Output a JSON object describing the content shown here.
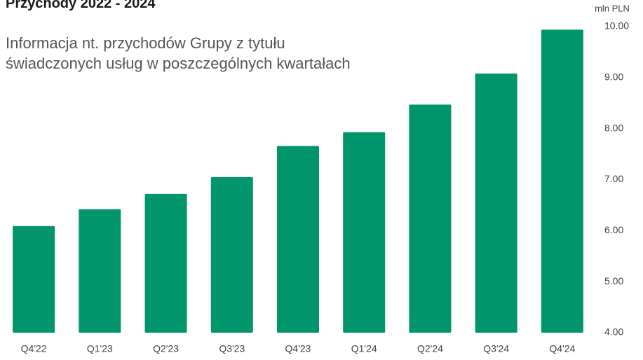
{
  "chart_data": {
    "type": "bar",
    "title": "Przychody 2022 - 2024",
    "subtitle": "Informacja nt. przychodów Grupy z tytułu świadczonych usług w poszczególnych kwartałach",
    "y_axis_label": "mln PLN",
    "categories": [
      "Q4'22",
      "Q1'23",
      "Q2'23",
      "Q3'23",
      "Q4'23",
      "Q1'24",
      "Q2'24",
      "Q3'24",
      "Q4'24"
    ],
    "values": [
      6.09,
      6.42,
      6.72,
      7.05,
      7.66,
      7.93,
      8.47,
      9.08,
      9.94
    ],
    "color": "#00956a",
    "ylim": [
      4,
      10
    ],
    "yticks": [
      {
        "value": 4,
        "label": "4.00"
      },
      {
        "value": 5,
        "label": "5.00"
      },
      {
        "value": 6,
        "label": "6.00"
      },
      {
        "value": 7,
        "label": "7.00"
      },
      {
        "value": 8,
        "label": "8.00"
      },
      {
        "value": 9,
        "label": "9.00"
      },
      {
        "value": 10,
        "label": "10.00"
      }
    ],
    "grid": false
  }
}
